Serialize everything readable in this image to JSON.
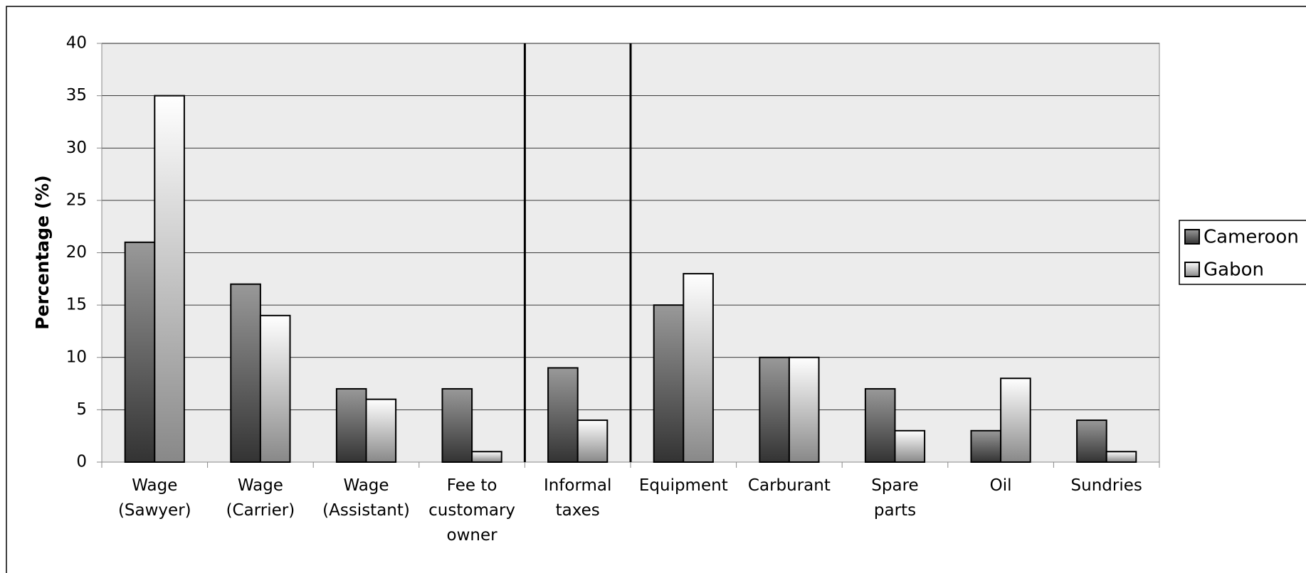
{
  "chart_data": {
    "type": "bar",
    "y_label": "Percentage (%)",
    "categories": [
      "Wage (Sawyer)",
      "Wage (Carrier)",
      "Wage (Assistant)",
      "Fee to customary owner",
      "Informal taxes",
      "Equipment",
      "Carburant",
      "Spare parts",
      "Oil",
      "Sundries"
    ],
    "series": [
      {
        "name": "Cameroon",
        "color": "#808080",
        "values": [
          21,
          17,
          7,
          7,
          9,
          15,
          10,
          7,
          3,
          4
        ]
      },
      {
        "name": "Gabon",
        "color": "#ffffff",
        "values": [
          35,
          14,
          6,
          1,
          4,
          18,
          10,
          3,
          8,
          1
        ]
      }
    ],
    "ylim": [
      0,
      40
    ],
    "yticks": [
      0,
      5,
      10,
      15,
      20,
      25,
      30,
      35,
      40
    ],
    "grid": true,
    "legend": "right"
  }
}
